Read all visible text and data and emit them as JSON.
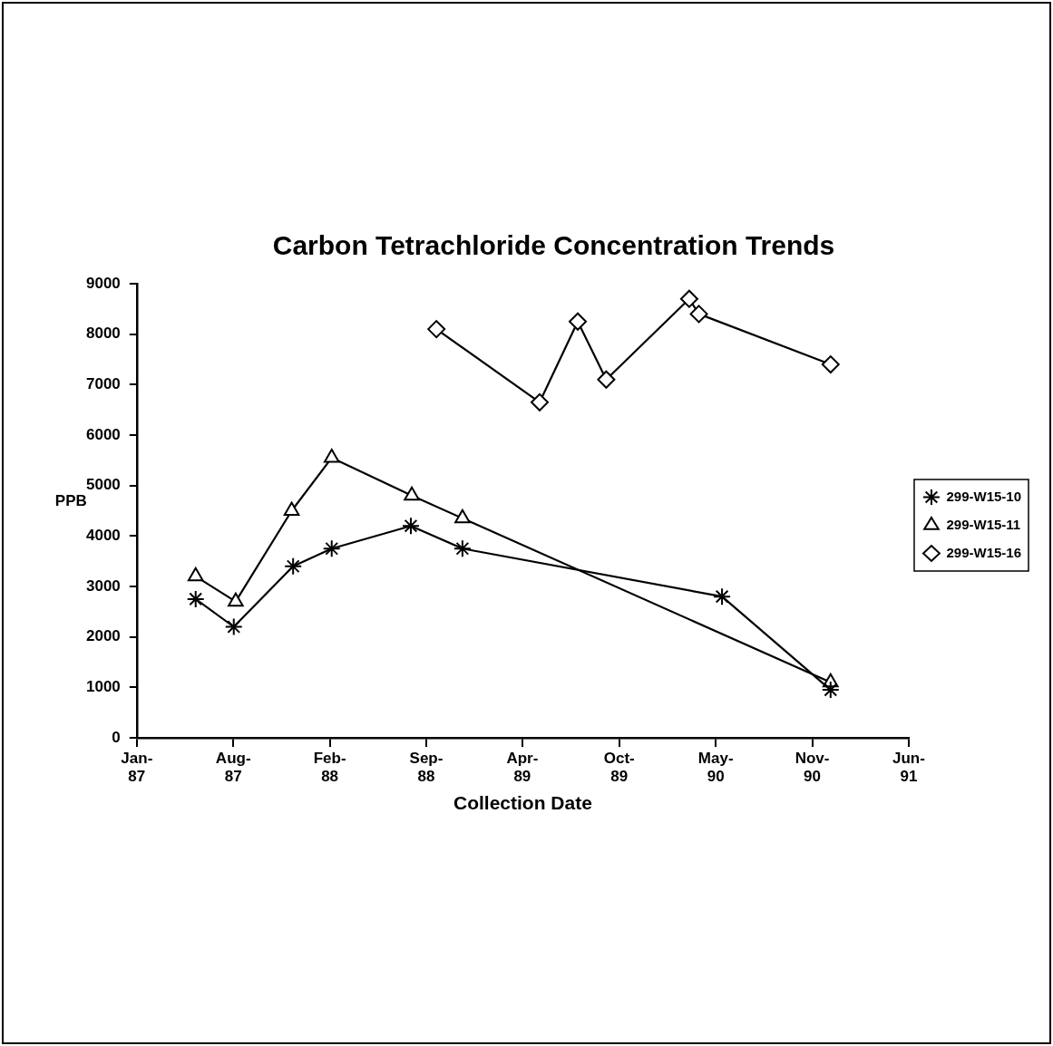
{
  "chart_data": {
    "type": "line",
    "title": "Carbon Tetrachloride Concentration Trends",
    "xlabel": "Collection Date",
    "ylabel": "PPB",
    "xlim": [
      "1987-01-23",
      "1991-06-11"
    ],
    "xticks": [
      {
        "value": "1987-01-23",
        "label": "Jan-87"
      },
      {
        "value": "1987-08-11",
        "label": "Aug-87"
      },
      {
        "value": "1988-02-27",
        "label": "Feb-88"
      },
      {
        "value": "1988-09-14",
        "label": "Sep-88"
      },
      {
        "value": "1989-04-01",
        "label": "Apr-89"
      },
      {
        "value": "1989-10-19",
        "label": "Oct-89"
      },
      {
        "value": "1990-05-07",
        "label": "May-90"
      },
      {
        "value": "1990-11-23",
        "label": "Nov-90"
      },
      {
        "value": "1991-06-11",
        "label": "Jun-91"
      }
    ],
    "ylim": [
      0,
      9000
    ],
    "yticks": [
      0,
      1000,
      2000,
      3000,
      4000,
      5000,
      6000,
      7000,
      8000,
      9000
    ],
    "grid": false,
    "legend": "right",
    "line_style": "solid",
    "series": [
      {
        "name": "299-W15-10",
        "color": "#000000",
        "marker": "cross",
        "x": [
          "1987-05-25",
          "1987-08-12",
          "1987-12-13",
          "1988-03-02",
          "1988-08-13",
          "1988-11-28",
          "1990-05-20",
          "1990-12-31"
        ],
        "values": [
          2750,
          2200,
          3400,
          3750,
          4200,
          3750,
          2800,
          950
        ]
      },
      {
        "name": "299-W15-11",
        "color": "#000000",
        "marker": "triangle",
        "x": [
          "1987-05-25",
          "1987-08-16",
          "1987-12-10",
          "1988-03-02",
          "1988-08-15",
          "1988-11-28",
          "1990-12-31"
        ],
        "values": [
          3200,
          2700,
          4500,
          5550,
          4800,
          4350,
          1100
        ]
      },
      {
        "name": "299-W15-16",
        "color": "#000000",
        "marker": "diamond",
        "x": [
          "1988-10-05",
          "1989-05-07",
          "1989-07-25",
          "1989-09-22",
          "1990-03-13",
          "1990-04-02",
          "1990-12-31"
        ],
        "values": [
          8100,
          6650,
          8250,
          7100,
          8700,
          8400,
          7400
        ]
      }
    ]
  }
}
